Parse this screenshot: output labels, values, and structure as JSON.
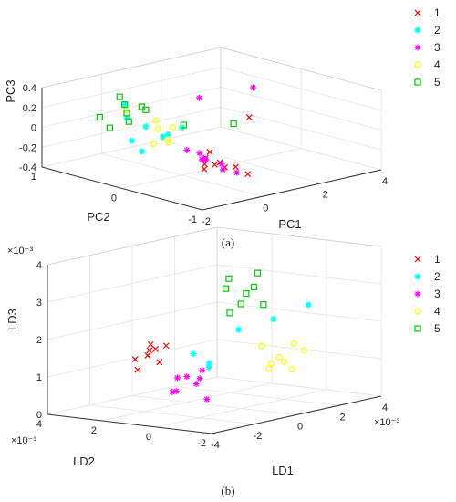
{
  "chart_data": [
    {
      "type": "scatter",
      "caption": "(a)",
      "xlabel": "PC1",
      "ylabel": "PC2",
      "zlabel": "PC3",
      "xlim": [
        -2,
        4
      ],
      "ylim": [
        -1,
        1
      ],
      "zlim": [
        -0.4,
        0.4
      ],
      "xticks": [
        "-2",
        "0",
        "2",
        "4"
      ],
      "yticks": [
        "-1",
        "0",
        "1"
      ],
      "zticks": [
        "-0.4",
        "-0.2",
        "0",
        "0.2",
        "0.4"
      ],
      "grid": true,
      "legend_position": "top-right",
      "series": [
        {
          "name": "1",
          "color": "#ff0000",
          "marker": "x-mark",
          "points": [
            [
              0.3,
              -0.3,
              -0.25
            ],
            [
              0.5,
              -0.1,
              -0.3
            ],
            [
              0.2,
              -0.4,
              -0.2
            ],
            [
              0.8,
              0.0,
              -0.28
            ],
            [
              0.4,
              -0.2,
              -0.15
            ],
            [
              1.0,
              -0.3,
              -0.32
            ],
            [
              0.1,
              -0.5,
              -0.22
            ],
            [
              0.6,
              -0.6,
              -0.3
            ],
            [
              2.8,
              0.2,
              -0.05
            ],
            [
              0.35,
              -0.15,
              -0.33
            ]
          ]
        },
        {
          "name": "2",
          "color": "#00ffff",
          "marker": "star",
          "points": [
            [
              -0.4,
              0.3,
              0.05
            ],
            [
              -0.2,
              0.1,
              0.0
            ],
            [
              -0.5,
              0.5,
              0.1
            ],
            [
              -0.1,
              0.2,
              -0.05
            ],
            [
              -0.6,
              0.4,
              -0.1
            ],
            [
              -0.3,
              0.6,
              0.2
            ],
            [
              0.0,
              0.0,
              0.08
            ],
            [
              -0.8,
              0.2,
              -0.15
            ]
          ]
        },
        {
          "name": "3",
          "color": "#ff00ff",
          "marker": "asterisk",
          "points": [
            [
              0.2,
              -0.2,
              -0.2
            ],
            [
              0.4,
              -0.1,
              -0.25
            ],
            [
              0.0,
              -0.3,
              -0.18
            ],
            [
              0.6,
              0.0,
              -0.22
            ],
            [
              0.3,
              -0.4,
              -0.28
            ],
            [
              0.8,
              -0.2,
              -0.3
            ],
            [
              -0.1,
              -0.1,
              -0.12
            ],
            [
              2.2,
              0.6,
              0.1
            ],
            [
              3.2,
              0.3,
              0.2
            ],
            [
              0.5,
              -0.5,
              -0.3
            ]
          ]
        },
        {
          "name": "4",
          "color": "#ffff00",
          "marker": "circle",
          "points": [
            [
              -0.2,
              0.1,
              -0.05
            ],
            [
              0.0,
              0.3,
              0.0
            ],
            [
              -0.4,
              0.2,
              -0.1
            ],
            [
              0.2,
              0.4,
              0.05
            ],
            [
              -0.3,
              0.0,
              0.1
            ],
            [
              0.1,
              0.2,
              -0.12
            ],
            [
              -0.5,
              0.5,
              0.18
            ]
          ]
        },
        {
          "name": "5",
          "color": "#00cc00",
          "marker": "square",
          "points": [
            [
              -0.5,
              0.5,
              0.15
            ],
            [
              -0.3,
              0.6,
              0.2
            ],
            [
              -0.7,
              0.4,
              0.1
            ],
            [
              -0.2,
              0.7,
              0.25
            ],
            [
              -0.6,
              0.8,
              0.05
            ],
            [
              0.0,
              0.5,
              0.18
            ],
            [
              -0.4,
              0.3,
              0.22
            ],
            [
              0.6,
              0.2,
              0.02
            ],
            [
              1.2,
              -0.2,
              0.08
            ],
            [
              -0.8,
              0.6,
              0.0
            ]
          ]
        }
      ]
    },
    {
      "type": "scatter",
      "caption": "(b)",
      "xlabel": "LD1",
      "ylabel": "LD2",
      "zlabel": "LD3",
      "xlim": [
        -4,
        4
      ],
      "ylim": [
        -2,
        4
      ],
      "zlim": [
        0,
        4
      ],
      "xticks": [
        "-4",
        "-2",
        "0",
        "2",
        "4"
      ],
      "yticks": [
        "-2",
        "0",
        "2",
        "4"
      ],
      "zticks": [
        "0",
        "1",
        "2",
        "3",
        "4"
      ],
      "x_exponent": "×10⁻³",
      "y_exponent": "×10⁻³",
      "z_exponent": "×10⁻³",
      "grid": true,
      "legend_position": "top-right",
      "series": [
        {
          "name": "1",
          "color": "#ff0000",
          "marker": "x-mark",
          "points": [
            [
              -2.8,
              1.2,
              1.8
            ],
            [
              -2.5,
              1.5,
              1.6
            ],
            [
              -3.0,
              1.0,
              2.0
            ],
            [
              -2.2,
              1.3,
              1.4
            ],
            [
              -2.7,
              1.8,
              1.5
            ],
            [
              -2.4,
              0.9,
              1.9
            ],
            [
              -3.1,
              1.4,
              1.3
            ],
            [
              -2.0,
              1.6,
              1.7
            ]
          ]
        },
        {
          "name": "2",
          "color": "#00ffff",
          "marker": "star",
          "points": [
            [
              -1.0,
              1.0,
              1.5
            ],
            [
              0.5,
              0.5,
              2.0
            ],
            [
              1.5,
              0.0,
              2.2
            ],
            [
              -0.5,
              0.8,
              1.2
            ],
            [
              2.5,
              -0.5,
              2.5
            ],
            [
              0.0,
              1.2,
              1.0
            ]
          ]
        },
        {
          "name": "3",
          "color": "#ff00ff",
          "marker": "asterisk",
          "points": [
            [
              -2.0,
              0.8,
              1.0
            ],
            [
              -1.5,
              0.5,
              0.8
            ],
            [
              -2.2,
              0.3,
              1.1
            ],
            [
              -1.8,
              1.0,
              0.6
            ],
            [
              -1.2,
              0.6,
              0.9
            ],
            [
              -2.5,
              0.6,
              0.7
            ],
            [
              -1.6,
              0.2,
              1.2
            ],
            [
              -1.9,
              -0.2,
              0.5
            ]
          ]
        },
        {
          "name": "4",
          "color": "#ffff00",
          "marker": "circle",
          "points": [
            [
              1.5,
              -0.2,
              1.2
            ],
            [
              2.0,
              0.0,
              1.0
            ],
            [
              1.2,
              0.2,
              1.5
            ],
            [
              2.3,
              -0.5,
              1.3
            ],
            [
              1.8,
              0.4,
              0.8
            ],
            [
              1.0,
              -0.3,
              1.1
            ],
            [
              2.6,
              0.1,
              1.4
            ],
            [
              1.6,
              -0.6,
              0.9
            ]
          ]
        },
        {
          "name": "5",
          "color": "#00cc00",
          "marker": "square",
          "points": [
            [
              1.0,
              0.8,
              2.6
            ],
            [
              1.5,
              1.0,
              2.8
            ],
            [
              0.8,
              1.2,
              3.0
            ],
            [
              1.8,
              0.6,
              2.5
            ],
            [
              1.2,
              1.4,
              3.2
            ],
            [
              0.6,
              0.9,
              2.4
            ],
            [
              2.0,
              1.1,
              2.9
            ],
            [
              1.4,
              0.5,
              3.4
            ]
          ]
        }
      ]
    }
  ]
}
